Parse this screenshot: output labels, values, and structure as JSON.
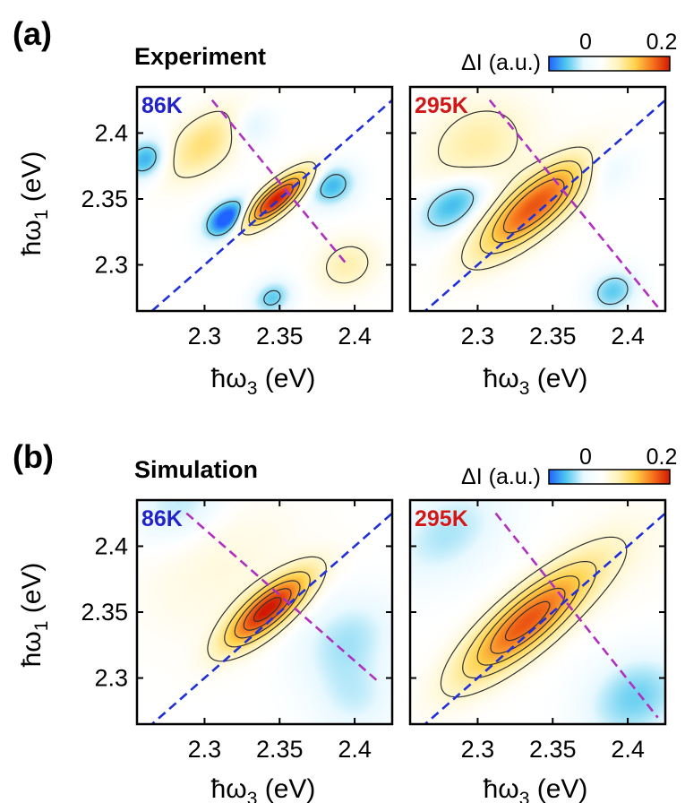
{
  "figure": {
    "panel_a_label": "(a)",
    "panel_b_label": "(b)",
    "row_a_title": "Experiment",
    "row_b_title": "Simulation"
  },
  "colorbar": {
    "label": "ΔI (a.u.)",
    "min_label": "0",
    "max_label": "0.2",
    "stops": [
      "#1e63ff",
      "#4fc8ee",
      "#e9f9ff",
      "#ffffff",
      "#fff4bc",
      "#ffd24a",
      "#f6741c",
      "#d11800"
    ]
  },
  "axes": {
    "y_label_main": "ħω",
    "y_label_sub": "1",
    "y_label_unit": " (eV)",
    "x_label_main": "ħω",
    "x_label_sub": "3",
    "x_label_unit": " (eV)"
  },
  "colors": {
    "diagonal_line": "#2030d8",
    "antidiagonal_line": "#b030c0",
    "temp_86K": "#2222cc",
    "temp_295K": "#d01818",
    "contour": "#333333"
  },
  "chart_data": [
    {
      "type": "heatmap",
      "row": "Experiment",
      "temperature": "86K",
      "xlabel": "ħω3 (eV)",
      "ylabel": "ħω1 (eV)",
      "xlim": [
        2.255,
        2.425
      ],
      "ylim": [
        2.265,
        2.435
      ],
      "xticks": [
        2.3,
        2.35,
        2.4
      ],
      "xtick_labels": [
        "2.3",
        "2.35",
        "2.4"
      ],
      "yticks": [
        2.3,
        2.35,
        2.4
      ],
      "ytick_labels": [
        "2.3",
        "2.35",
        "2.4"
      ],
      "zrange": [
        -0.05,
        0.2
      ],
      "peaks": [
        {
          "x": 2.348,
          "y": 2.35,
          "amp": 0.2,
          "sd": 0.018,
          "sa": 0.006
        },
        {
          "x": 2.3,
          "y": 2.392,
          "amp": 0.06,
          "sd": 0.022,
          "sa": 0.012
        },
        {
          "x": 2.395,
          "y": 2.3,
          "amp": 0.035,
          "sd": 0.014,
          "sa": 0.012
        },
        {
          "x": 2.315,
          "y": 2.335,
          "amp": -0.06,
          "sd": 0.012,
          "sa": 0.008
        },
        {
          "x": 2.262,
          "y": 2.38,
          "amp": -0.04,
          "sd": 0.012,
          "sa": 0.01
        },
        {
          "x": 2.385,
          "y": 2.36,
          "amp": -0.035,
          "sd": 0.012,
          "sa": 0.01
        },
        {
          "x": 2.328,
          "y": 2.405,
          "amp": -0.025,
          "sd": 0.012,
          "sa": 0.01
        },
        {
          "x": 2.345,
          "y": 2.275,
          "amp": -0.03,
          "sd": 0.01,
          "sa": 0.008
        }
      ],
      "contour_levels": [
        0.02,
        0.06,
        0.1,
        0.14,
        -0.025
      ],
      "diagonal": {
        "from": [
          2.265,
          2.265
        ],
        "to": [
          2.425,
          2.425
        ]
      },
      "antidiagonal": {
        "from": [
          2.305,
          2.425
        ],
        "to": [
          2.395,
          2.3
        ]
      }
    },
    {
      "type": "heatmap",
      "row": "Experiment",
      "temperature": "295K",
      "xlabel": "ħω3 (eV)",
      "ylabel": "ħω1 (eV)",
      "xlim": [
        2.255,
        2.425
      ],
      "ylim": [
        2.265,
        2.435
      ],
      "xticks": [
        2.3,
        2.35,
        2.4
      ],
      "xtick_labels": [
        "2.3",
        "2.35",
        "2.4"
      ],
      "yticks": [],
      "ytick_labels": [],
      "zrange": [
        -0.05,
        0.2
      ],
      "peaks": [
        {
          "x": 2.338,
          "y": 2.345,
          "amp": 0.16,
          "sd": 0.032,
          "sa": 0.011
        },
        {
          "x": 2.3,
          "y": 2.39,
          "amp": 0.04,
          "sd": 0.025,
          "sa": 0.02
        },
        {
          "x": 2.285,
          "y": 2.348,
          "amp": -0.04,
          "sd": 0.02,
          "sa": 0.012
        },
        {
          "x": 2.38,
          "y": 2.375,
          "amp": -0.025,
          "sd": 0.015,
          "sa": 0.012
        },
        {
          "x": 2.39,
          "y": 2.28,
          "amp": -0.03,
          "sd": 0.012,
          "sa": 0.01
        }
      ],
      "contour_levels": [
        0.02,
        0.05,
        0.08,
        0.11,
        -0.02
      ],
      "diagonal": {
        "from": [
          2.255,
          2.255
        ],
        "to": [
          2.425,
          2.425
        ]
      },
      "antidiagonal": {
        "from": [
          2.308,
          2.425
        ],
        "to": [
          2.42,
          2.268
        ]
      }
    },
    {
      "type": "heatmap",
      "row": "Simulation",
      "temperature": "86K",
      "xlabel": "ħω3 (eV)",
      "ylabel": "ħω1 (eV)",
      "xlim": [
        2.255,
        2.425
      ],
      "ylim": [
        2.265,
        2.435
      ],
      "xticks": [
        2.3,
        2.35,
        2.4
      ],
      "xtick_labels": [
        "2.3",
        "2.35",
        "2.4"
      ],
      "yticks": [
        2.3,
        2.35,
        2.4
      ],
      "ytick_labels": [
        "2.3",
        "2.35",
        "2.4"
      ],
      "zrange": [
        -0.05,
        0.2
      ],
      "peaks": [
        {
          "x": 2.342,
          "y": 2.352,
          "amp": 0.2,
          "sd": 0.024,
          "sa": 0.0085
        },
        {
          "x": 2.31,
          "y": 2.385,
          "amp": 0.015,
          "sd": 0.04,
          "sa": 0.03
        },
        {
          "x": 2.285,
          "y": 2.43,
          "amp": -0.02,
          "sd": 0.025,
          "sa": 0.02
        },
        {
          "x": 2.395,
          "y": 2.33,
          "amp": -0.02,
          "sd": 0.025,
          "sa": 0.02
        },
        {
          "x": 2.4,
          "y": 2.285,
          "amp": -0.015,
          "sd": 0.02,
          "sa": 0.02
        }
      ],
      "contour_levels": [
        0.02,
        0.06,
        0.1,
        0.14,
        0.18
      ],
      "diagonal": {
        "from": [
          2.255,
          2.255
        ],
        "to": [
          2.425,
          2.425
        ]
      },
      "antidiagonal": {
        "from": [
          2.288,
          2.425
        ],
        "to": [
          2.415,
          2.298
        ]
      }
    },
    {
      "type": "heatmap",
      "row": "Simulation",
      "temperature": "295K",
      "xlabel": "ħω3 (eV)",
      "ylabel": "ħω1 (eV)",
      "xlim": [
        2.255,
        2.425
      ],
      "ylim": [
        2.265,
        2.435
      ],
      "xticks": [
        2.3,
        2.35,
        2.4
      ],
      "xtick_labels": [
        "2.3",
        "2.35",
        "2.4"
      ],
      "yticks": [],
      "ytick_labels": [],
      "zrange": [
        -0.05,
        0.2
      ],
      "peaks": [
        {
          "x": 2.333,
          "y": 2.343,
          "amp": 0.16,
          "sd": 0.038,
          "sa": 0.012
        },
        {
          "x": 2.28,
          "y": 2.41,
          "amp": -0.02,
          "sd": 0.03,
          "sa": 0.02
        },
        {
          "x": 2.405,
          "y": 2.285,
          "amp": -0.028,
          "sd": 0.025,
          "sa": 0.02
        },
        {
          "x": 2.395,
          "y": 2.395,
          "amp": 0.01,
          "sd": 0.03,
          "sa": 0.02
        }
      ],
      "contour_levels": [
        0.02,
        0.05,
        0.08,
        0.11,
        0.14
      ],
      "diagonal": {
        "from": [
          2.255,
          2.255
        ],
        "to": [
          2.425,
          2.425
        ]
      },
      "antidiagonal": {
        "from": [
          2.312,
          2.425
        ],
        "to": [
          2.42,
          2.27
        ]
      }
    }
  ]
}
